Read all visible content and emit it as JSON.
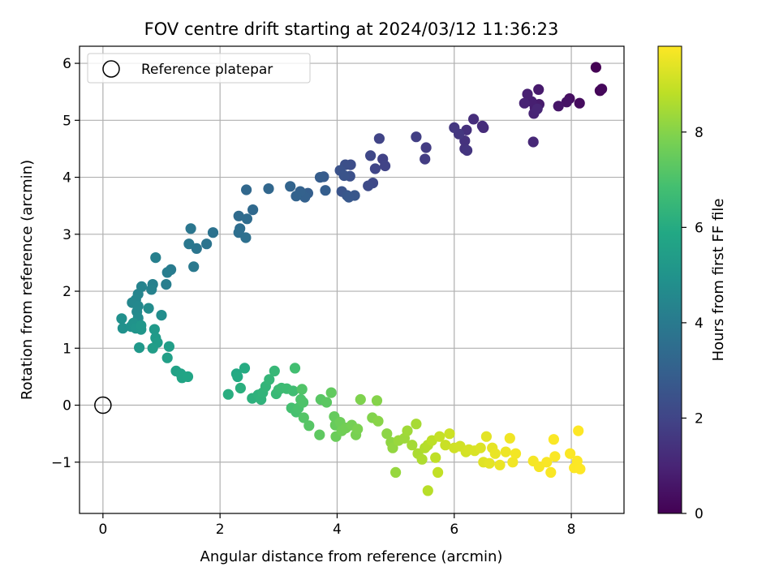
{
  "chart_data": {
    "type": "scatter",
    "title": "FOV centre drift starting at 2024/03/12 11:36:23",
    "xlabel": "Angular distance from reference (arcmin)",
    "ylabel": "Rotation from reference (arcmin)",
    "xlim": [
      -0.4,
      8.9
    ],
    "ylim": [
      -1.9,
      6.3
    ],
    "xticks": [
      0,
      2,
      4,
      6,
      8
    ],
    "yticks": [
      -1,
      0,
      1,
      2,
      3,
      4,
      5,
      6
    ],
    "grid": true,
    "legend": {
      "placement": "top-left",
      "entries": [
        "Reference platepar"
      ]
    },
    "reference_point": {
      "name": "Reference platepar",
      "x": 0,
      "y": 0
    },
    "colorbar": {
      "label": "Hours from first FF file",
      "colormap": "viridis",
      "range": [
        0,
        9.8
      ],
      "ticks": [
        0,
        2,
        4,
        6,
        8
      ]
    },
    "points": [
      [
        8.42,
        5.93,
        0.0
      ],
      [
        8.49,
        5.52,
        0.1
      ],
      [
        8.52,
        5.55,
        0.2
      ],
      [
        8.14,
        5.3,
        0.3
      ],
      [
        7.97,
        5.38,
        0.4
      ],
      [
        7.92,
        5.32,
        0.5
      ],
      [
        7.78,
        5.25,
        0.6
      ],
      [
        7.44,
        5.54,
        0.7
      ],
      [
        7.45,
        5.28,
        0.75
      ],
      [
        7.38,
        5.22,
        0.8
      ],
      [
        7.32,
        5.33,
        0.85
      ],
      [
        7.25,
        5.46,
        0.9
      ],
      [
        7.2,
        5.3,
        0.95
      ],
      [
        7.36,
        5.12,
        1.0
      ],
      [
        7.42,
        5.2,
        1.05
      ],
      [
        7.35,
        4.62,
        1.1
      ],
      [
        6.5,
        4.87,
        1.2
      ],
      [
        6.48,
        4.9,
        1.25
      ],
      [
        6.33,
        5.02,
        1.3
      ],
      [
        6.21,
        4.83,
        1.35
      ],
      [
        6.18,
        4.64,
        1.4
      ],
      [
        6.18,
        4.5,
        1.45
      ],
      [
        6.22,
        4.47,
        1.5
      ],
      [
        6.08,
        4.76,
        1.55
      ],
      [
        6.0,
        4.87,
        1.6
      ],
      [
        5.52,
        4.52,
        1.7
      ],
      [
        5.5,
        4.32,
        1.75
      ],
      [
        5.35,
        4.71,
        1.8
      ],
      [
        4.78,
        4.32,
        1.9
      ],
      [
        4.82,
        4.2,
        1.95
      ],
      [
        4.72,
        4.68,
        2.0
      ],
      [
        4.65,
        4.15,
        2.05
      ],
      [
        4.57,
        4.38,
        2.1
      ],
      [
        4.61,
        3.9,
        2.15
      ],
      [
        4.53,
        3.85,
        2.2
      ],
      [
        4.23,
        4.22,
        2.3
      ],
      [
        4.14,
        4.22,
        2.35
      ],
      [
        4.22,
        4.02,
        2.4
      ],
      [
        4.05,
        4.12,
        2.45
      ],
      [
        4.12,
        4.03,
        2.5
      ],
      [
        4.08,
        3.75,
        2.55
      ],
      [
        4.17,
        3.68,
        2.6
      ],
      [
        4.3,
        3.68,
        2.65
      ],
      [
        4.2,
        3.65,
        2.7
      ],
      [
        3.77,
        4.01,
        2.8
      ],
      [
        3.71,
        4.0,
        2.85
      ],
      [
        3.8,
        3.77,
        2.9
      ],
      [
        3.5,
        3.72,
        2.95
      ],
      [
        3.45,
        3.65,
        3.0
      ],
      [
        3.37,
        3.75,
        3.05
      ],
      [
        3.3,
        3.67,
        3.1
      ],
      [
        3.2,
        3.84,
        3.15
      ],
      [
        2.83,
        3.8,
        3.25
      ],
      [
        2.45,
        3.78,
        3.3
      ],
      [
        2.56,
        3.43,
        3.35
      ],
      [
        2.32,
        3.32,
        3.4
      ],
      [
        2.46,
        3.27,
        3.45
      ],
      [
        2.34,
        3.1,
        3.5
      ],
      [
        2.32,
        3.03,
        3.55
      ],
      [
        2.44,
        2.94,
        3.6
      ],
      [
        1.88,
        3.03,
        3.7
      ],
      [
        1.77,
        2.83,
        3.75
      ],
      [
        1.6,
        2.75,
        3.8
      ],
      [
        1.5,
        3.1,
        3.85
      ],
      [
        1.47,
        2.83,
        3.9
      ],
      [
        1.55,
        2.43,
        3.95
      ],
      [
        1.16,
        2.38,
        4.05
      ],
      [
        1.1,
        2.33,
        4.1
      ],
      [
        1.08,
        2.12,
        4.15
      ],
      [
        0.9,
        2.59,
        4.2
      ],
      [
        0.85,
        2.12,
        4.25
      ],
      [
        0.83,
        2.03,
        4.3
      ],
      [
        0.66,
        2.08,
        4.35
      ],
      [
        0.6,
        1.95,
        4.4
      ],
      [
        0.56,
        1.85,
        4.45
      ],
      [
        0.5,
        1.8,
        4.5
      ],
      [
        0.6,
        1.74,
        4.55
      ],
      [
        0.58,
        1.64,
        4.6
      ],
      [
        0.6,
        1.53,
        4.65
      ],
      [
        0.78,
        1.7,
        4.7
      ],
      [
        1.0,
        1.58,
        4.75
      ],
      [
        0.32,
        1.52,
        4.85
      ],
      [
        0.34,
        1.35,
        4.9
      ],
      [
        0.48,
        1.38,
        4.95
      ],
      [
        0.52,
        1.44,
        5.0
      ],
      [
        0.56,
        1.35,
        5.05
      ],
      [
        0.65,
        1.33,
        5.1
      ],
      [
        0.65,
        1.4,
        5.15
      ],
      [
        0.62,
        1.01,
        5.2
      ],
      [
        0.88,
        1.33,
        5.25
      ],
      [
        0.9,
        1.18,
        5.3
      ],
      [
        0.93,
        1.1,
        5.35
      ],
      [
        0.85,
        1.0,
        5.4
      ],
      [
        1.13,
        1.03,
        5.45
      ],
      [
        1.1,
        0.83,
        5.5
      ],
      [
        1.25,
        0.6,
        5.6
      ],
      [
        1.33,
        0.55,
        5.65
      ],
      [
        1.35,
        0.48,
        5.7
      ],
      [
        1.45,
        0.5,
        5.75
      ],
      [
        2.28,
        0.55,
        5.9
      ],
      [
        2.3,
        0.5,
        5.95
      ],
      [
        2.42,
        0.65,
        6.0
      ],
      [
        2.14,
        0.19,
        6.1
      ],
      [
        2.35,
        0.3,
        6.15
      ],
      [
        2.55,
        0.12,
        6.2
      ],
      [
        2.65,
        0.18,
        6.25
      ],
      [
        2.7,
        0.1,
        6.3
      ],
      [
        2.73,
        0.22,
        6.35
      ],
      [
        2.78,
        0.33,
        6.4
      ],
      [
        2.84,
        0.45,
        6.45
      ],
      [
        2.93,
        0.6,
        6.5
      ],
      [
        2.96,
        0.2,
        6.55
      ],
      [
        3.0,
        0.27,
        6.6
      ],
      [
        3.05,
        0.3,
        6.65
      ],
      [
        3.14,
        0.29,
        6.7
      ],
      [
        3.25,
        0.25,
        6.75
      ],
      [
        3.28,
        0.65,
        6.8
      ],
      [
        3.22,
        -0.05,
        6.85
      ],
      [
        3.3,
        -0.12,
        6.9
      ],
      [
        3.34,
        -0.05,
        6.95
      ],
      [
        3.38,
        0.1,
        7.0
      ],
      [
        3.42,
        0.05,
        7.05
      ],
      [
        3.4,
        0.28,
        7.1
      ],
      [
        3.43,
        -0.22,
        7.15
      ],
      [
        3.52,
        -0.36,
        7.2
      ],
      [
        3.72,
        0.1,
        7.25
      ],
      [
        3.82,
        0.05,
        7.3
      ],
      [
        3.7,
        -0.52,
        7.35
      ],
      [
        3.9,
        0.22,
        7.4
      ],
      [
        3.95,
        -0.2,
        7.45
      ],
      [
        3.97,
        -0.35,
        7.5
      ],
      [
        3.98,
        -0.55,
        7.55
      ],
      [
        4.05,
        -0.3,
        7.6
      ],
      [
        4.08,
        -0.45,
        7.65
      ],
      [
        4.15,
        -0.4,
        7.7
      ],
      [
        4.25,
        -0.35,
        7.75
      ],
      [
        4.32,
        -0.52,
        7.8
      ],
      [
        4.35,
        -0.42,
        7.85
      ],
      [
        4.4,
        0.1,
        7.9
      ],
      [
        4.6,
        -0.22,
        7.95
      ],
      [
        4.68,
        0.08,
        8.0
      ],
      [
        4.7,
        -0.28,
        8.05
      ],
      [
        4.85,
        -0.5,
        8.1
      ],
      [
        4.92,
        -0.65,
        8.15
      ],
      [
        4.95,
        -0.75,
        8.2
      ],
      [
        5.0,
        -1.18,
        8.25
      ],
      [
        5.05,
        -0.62,
        8.3
      ],
      [
        5.15,
        -0.58,
        8.35
      ],
      [
        5.2,
        -0.45,
        8.4
      ],
      [
        5.28,
        -0.7,
        8.45
      ],
      [
        5.35,
        -0.33,
        8.5
      ],
      [
        5.38,
        -0.85,
        8.55
      ],
      [
        5.45,
        -0.95,
        8.6
      ],
      [
        5.5,
        -0.75,
        8.65
      ],
      [
        5.55,
        -0.7,
        8.7
      ],
      [
        5.55,
        -1.5,
        8.75
      ],
      [
        5.62,
        -0.62,
        8.8
      ],
      [
        5.68,
        -0.92,
        8.85
      ],
      [
        5.72,
        -1.18,
        8.9
      ],
      [
        5.75,
        -0.55,
        8.95
      ],
      [
        5.85,
        -0.7,
        9.0
      ],
      [
        5.92,
        -0.5,
        9.05
      ],
      [
        6.0,
        -0.75,
        9.1
      ],
      [
        6.1,
        -0.72,
        9.12
      ],
      [
        6.2,
        -0.82,
        9.15
      ],
      [
        6.25,
        -0.78,
        9.2
      ],
      [
        6.35,
        -0.8,
        9.25
      ],
      [
        6.45,
        -0.75,
        9.3
      ],
      [
        6.5,
        -1.0,
        9.35
      ],
      [
        6.55,
        -0.55,
        9.4
      ],
      [
        6.6,
        -1.02,
        9.42
      ],
      [
        6.65,
        -0.75,
        9.45
      ],
      [
        6.7,
        -0.85,
        9.5
      ],
      [
        6.78,
        -1.05,
        9.52
      ],
      [
        6.88,
        -0.82,
        9.55
      ],
      [
        6.95,
        -0.58,
        9.6
      ],
      [
        7.0,
        -1.0,
        9.62
      ],
      [
        7.05,
        -0.85,
        9.65
      ],
      [
        7.35,
        -0.98,
        9.68
      ],
      [
        7.45,
        -1.08,
        9.7
      ],
      [
        7.58,
        -1.0,
        9.72
      ],
      [
        7.65,
        -1.18,
        9.74
      ],
      [
        7.72,
        -0.9,
        9.75
      ],
      [
        7.7,
        -0.6,
        9.76
      ],
      [
        7.98,
        -0.85,
        9.77
      ],
      [
        8.05,
        -1.1,
        9.78
      ],
      [
        8.1,
        -0.98,
        9.79
      ],
      [
        8.12,
        -0.45,
        9.8
      ],
      [
        8.15,
        -1.12,
        9.8
      ]
    ]
  }
}
